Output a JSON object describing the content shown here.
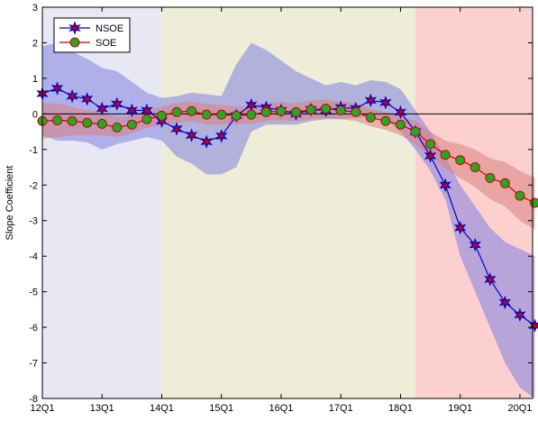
{
  "chart_data": {
    "type": "line",
    "xlabel": "",
    "ylabel": "Slope Coefficient",
    "x_ticks": [
      "12Q1",
      "13Q1",
      "14Q1",
      "15Q1",
      "16Q1",
      "17Q1",
      "18Q1",
      "19Q1",
      "20Q1"
    ],
    "ylim": [
      -8,
      3
    ],
    "y_ticks": [
      3,
      2,
      1,
      0,
      -1,
      -2,
      -3,
      -4,
      -5,
      -6,
      -7,
      -8
    ],
    "legend_position": "top-left",
    "shaded_periods": [
      {
        "start": 0,
        "end": 8,
        "color": "#e8e8f4"
      },
      {
        "start": 8,
        "end": 25,
        "color": "#eeeed8"
      },
      {
        "start": 25,
        "end": 33,
        "color": "#fdd0d0"
      }
    ],
    "series": [
      {
        "name": "NSOE",
        "color": "#0000cc",
        "marker_fill": "#cc0000",
        "band_color": "#8080e0",
        "values": [
          0.57,
          0.72,
          0.5,
          0.42,
          0.15,
          0.28,
          0.1,
          0.1,
          -0.2,
          -0.42,
          -0.6,
          -0.78,
          -0.62,
          -0.05,
          0.25,
          0.18,
          0.1,
          0.0,
          0.12,
          0.1,
          0.18,
          0.15,
          0.38,
          0.32,
          0.05,
          -0.5,
          -1.18,
          -2.0,
          -3.2,
          -3.68,
          -4.65,
          -5.3,
          -5.65,
          -5.95
        ],
        "lower": [
          -0.6,
          -0.75,
          -0.75,
          -0.8,
          -1.0,
          -0.85,
          -0.75,
          -0.65,
          -0.75,
          -1.2,
          -1.4,
          -1.7,
          -1.7,
          -1.5,
          -0.5,
          -0.3,
          -0.3,
          -0.3,
          -0.2,
          -0.15,
          -0.15,
          -0.1,
          -0.1,
          -0.15,
          -0.5,
          -1.0,
          -1.6,
          -2.4,
          -4.0,
          -5.0,
          -6.0,
          -7.0,
          -7.7,
          -8.0
        ],
        "upper": [
          1.9,
          2.0,
          1.75,
          1.55,
          1.3,
          1.2,
          0.9,
          0.6,
          0.45,
          0.5,
          0.6,
          0.55,
          0.5,
          1.4,
          2.0,
          1.8,
          1.5,
          1.2,
          1.0,
          0.8,
          0.9,
          0.8,
          0.95,
          0.9,
          0.7,
          0.1,
          -0.5,
          -1.2,
          -2.0,
          -2.6,
          -3.2,
          -3.6,
          -3.8,
          -4.0
        ]
      },
      {
        "name": "SOE",
        "color": "#cc0000",
        "marker_fill": "#22aa22",
        "band_color": "#d88080",
        "values": [
          -0.2,
          -0.18,
          -0.2,
          -0.25,
          -0.28,
          -0.38,
          -0.3,
          -0.15,
          -0.05,
          0.05,
          0.08,
          -0.02,
          -0.02,
          -0.05,
          -0.02,
          0.05,
          0.08,
          0.05,
          0.12,
          0.15,
          0.1,
          0.05,
          -0.1,
          -0.2,
          -0.3,
          -0.5,
          -0.85,
          -1.15,
          -1.3,
          -1.5,
          -1.8,
          -1.95,
          -2.3,
          -2.5
        ],
        "lower": [
          -0.7,
          -0.65,
          -0.6,
          -0.6,
          -0.6,
          -0.65,
          -0.55,
          -0.4,
          -0.3,
          -0.25,
          -0.2,
          -0.3,
          -0.3,
          -0.3,
          -0.28,
          -0.2,
          -0.18,
          -0.2,
          -0.15,
          -0.12,
          -0.15,
          -0.2,
          -0.35,
          -0.45,
          -0.6,
          -0.85,
          -1.2,
          -1.55,
          -1.8,
          -2.05,
          -2.4,
          -2.6,
          -3.0,
          -3.25
        ],
        "upper": [
          0.3,
          0.3,
          0.2,
          0.1,
          0.05,
          -0.1,
          -0.05,
          0.1,
          0.2,
          0.3,
          0.35,
          0.28,
          0.25,
          0.2,
          0.22,
          0.3,
          0.33,
          0.3,
          0.38,
          0.4,
          0.35,
          0.3,
          0.15,
          0.05,
          -0.05,
          -0.2,
          -0.5,
          -0.75,
          -0.85,
          -1.0,
          -1.25,
          -1.35,
          -1.6,
          -1.8
        ]
      }
    ]
  }
}
